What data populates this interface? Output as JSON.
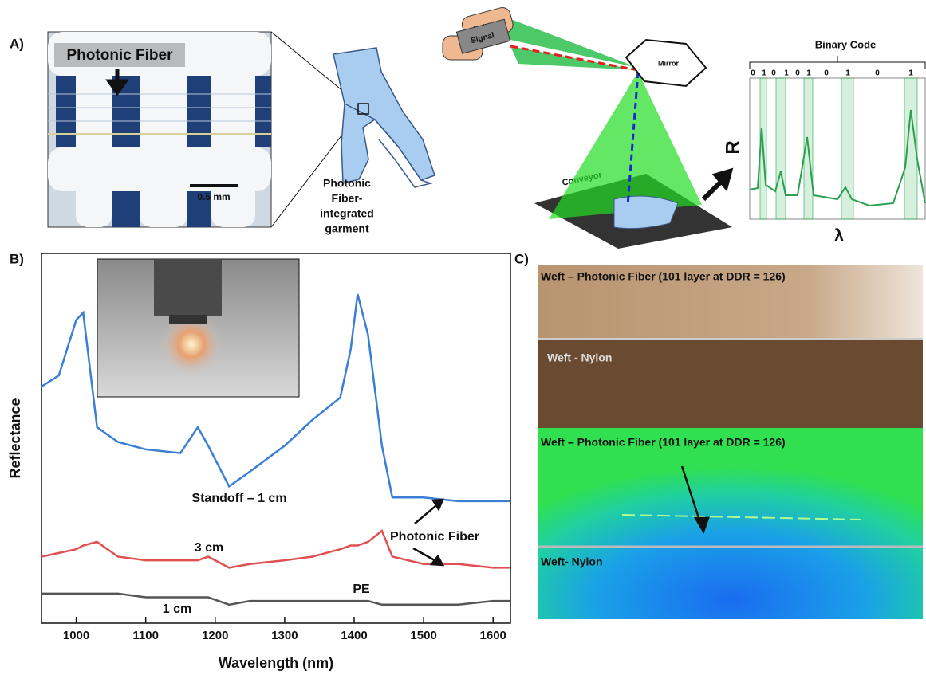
{
  "panel_labels": [
    "A)",
    "B)",
    "C)"
  ],
  "panel_a": {
    "photo_label": "Photonic Fiber",
    "scale_bar": "0.5 mm",
    "garment_label": [
      "Photonic",
      "Fiber-",
      "integrated",
      "garment"
    ],
    "scanner_labels": {
      "detector": "Detector",
      "signal": "Signal",
      "mirror": "Mirror",
      "conveyor": "Conveyor"
    },
    "plot": {
      "title": "Binary Code",
      "bits": [
        0,
        1,
        0,
        1,
        0,
        1,
        0,
        1,
        0,
        1
      ],
      "y_label": "R",
      "x_label": "λ"
    }
  },
  "chart_data": {
    "type": "line",
    "x_label": "Wavelength (nm)",
    "y_label": "Reflectance",
    "x": [
      950,
      975,
      1000,
      1010,
      1030,
      1060,
      1100,
      1150,
      1175,
      1190,
      1220,
      1250,
      1300,
      1340,
      1380,
      1395,
      1405,
      1420,
      1440,
      1455,
      1500,
      1550,
      1600,
      1625
    ],
    "series": [
      {
        "name": "Standoff – 1 cm",
        "color": "#3a7fd5",
        "values": [
          0.64,
          0.67,
          0.82,
          0.84,
          0.53,
          0.49,
          0.47,
          0.46,
          0.53,
          0.48,
          0.37,
          0.41,
          0.48,
          0.55,
          0.61,
          0.74,
          0.89,
          0.78,
          0.48,
          0.34,
          0.34,
          0.33,
          0.33,
          0.33
        ]
      },
      {
        "name": "3 cm",
        "color": "#e05050",
        "values": [
          0.18,
          0.19,
          0.2,
          0.21,
          0.22,
          0.18,
          0.17,
          0.17,
          0.17,
          0.18,
          0.15,
          0.16,
          0.17,
          0.18,
          0.2,
          0.21,
          0.21,
          0.22,
          0.25,
          0.18,
          0.16,
          0.16,
          0.15,
          0.15
        ]
      },
      {
        "name": "1 cm",
        "color": "#555555",
        "values": [
          0.08,
          0.08,
          0.08,
          0.08,
          0.08,
          0.08,
          0.07,
          0.07,
          0.07,
          0.07,
          0.05,
          0.06,
          0.06,
          0.06,
          0.06,
          0.06,
          0.06,
          0.06,
          0.05,
          0.05,
          0.05,
          0.05,
          0.06,
          0.06
        ]
      }
    ],
    "xlim": [
      950,
      1625
    ],
    "xticks": [
      1000,
      1100,
      1200,
      1300,
      1400,
      1500,
      1600
    ],
    "ylim": [
      0,
      1
    ],
    "annotations": [
      "PE",
      "Photonic Fiber"
    ]
  },
  "panel_c": {
    "labels": [
      "Weft – Photonic Fiber (101 layer at DDR = 126)",
      "Weft - Nylon",
      "Weft – Photonic Fiber (101 layer at DDR = 126)",
      "Weft- Nylon"
    ]
  }
}
